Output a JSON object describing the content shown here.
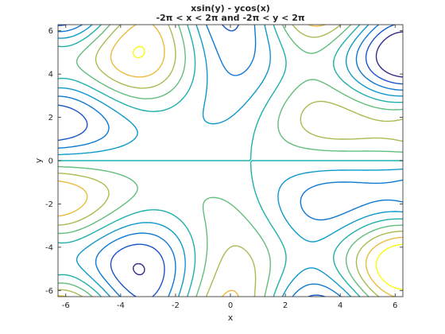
{
  "chart_data": {
    "type": "contour",
    "title_line1": "xsin(y) - ycos(x)",
    "title_line2": "-2π < x < 2π and -2π < y < 2π",
    "xlabel": "x",
    "ylabel": "y",
    "function": "x*sin(y) - y*cos(x)",
    "xlim": [
      -6.283,
      6.283
    ],
    "ylim": [
      -6.283,
      6.283
    ],
    "xticks": [
      -6,
      -4,
      -2,
      0,
      2,
      4,
      6
    ],
    "yticks": [
      -6,
      -4,
      -2,
      0,
      2,
      4,
      6
    ],
    "xtick_labels": [
      "-6",
      "-4",
      "-2",
      "0",
      "2",
      "4",
      "6"
    ],
    "ytick_labels": [
      "-6",
      "-4",
      "-2",
      "0",
      "2",
      "4",
      "6"
    ],
    "levels": [
      -8,
      -6,
      -4,
      -2,
      0,
      2,
      4,
      6,
      8
    ],
    "colormap": "parula",
    "grid": false,
    "box": true
  }
}
